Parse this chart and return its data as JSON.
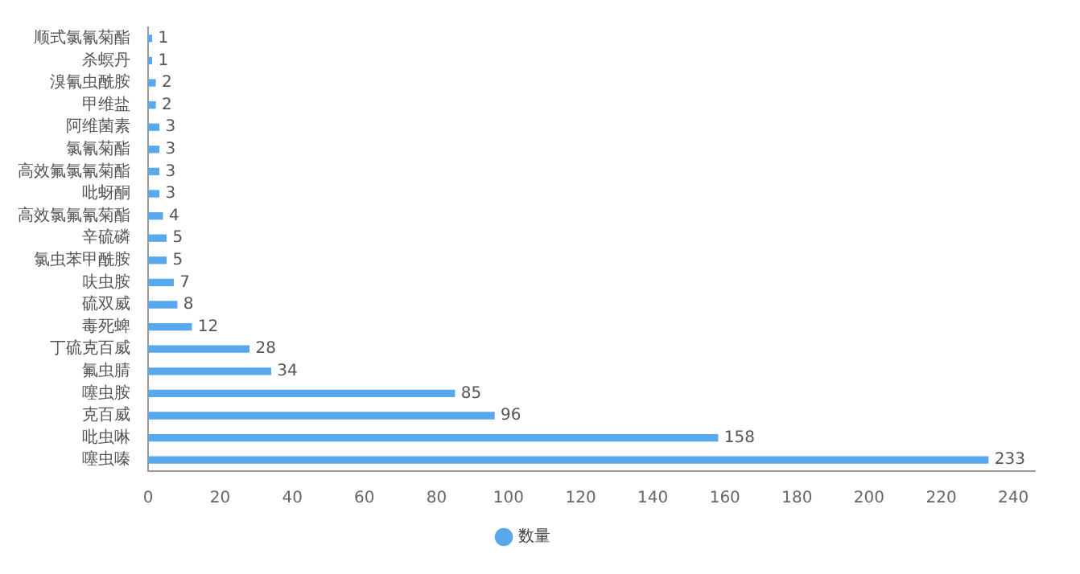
{
  "chart_data": {
    "type": "bar",
    "orientation": "horizontal",
    "categories": [
      "顺式氯氰菊酯",
      "杀螟丹",
      "溴氰虫酰胺",
      "甲维盐",
      "阿维菌素",
      "氯氰菊酯",
      "高效氟氯氰菊酯",
      "吡蚜酮",
      "高效氯氟氰菊酯",
      "辛硫磷",
      "氯虫苯甲酰胺",
      "呋虫胺",
      "硫双威",
      "毒死蜱",
      "丁硫克百威",
      "氟虫腈",
      "噻虫胺",
      "克百威",
      "吡虫啉",
      "噻虫嗪"
    ],
    "series": [
      {
        "name": "数量",
        "color": "#5aa8ec",
        "values": [
          1,
          1,
          2,
          2,
          3,
          3,
          3,
          3,
          4,
          5,
          5,
          7,
          8,
          12,
          28,
          34,
          85,
          96,
          158,
          233
        ]
      }
    ],
    "data_labels": true,
    "xlim": [
      0,
      246
    ],
    "xticks": [
      0,
      20,
      40,
      60,
      80,
      100,
      120,
      140,
      160,
      180,
      200,
      220,
      240
    ],
    "grid": false,
    "legend": "bottom"
  }
}
